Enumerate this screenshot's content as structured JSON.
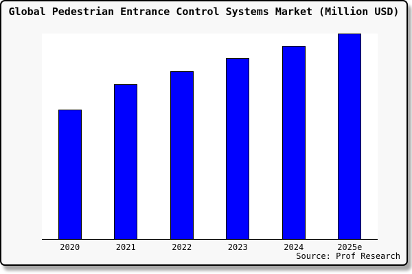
{
  "chart_data": {
    "type": "bar",
    "title": "Global Pedestrian Entrance Control Systems Market (Million USD)",
    "categories": [
      "2020",
      "2021",
      "2022",
      "2023",
      "2024",
      "2025e"
    ],
    "values": [
      62.9,
      75.3,
      81.6,
      88.0,
      94.0,
      100.0
    ],
    "values_note": "y-axis has no tick labels; values estimated as percent of tallest bar (2025e = 100)",
    "xlabel": "",
    "ylabel": "",
    "ylim_relative": [
      0,
      100
    ],
    "y_axis_labeled": false,
    "gridlines": false,
    "legend": null,
    "bar_color": "#0000ff",
    "bar_border_color": "#000000",
    "source": "Source: Prof Research"
  },
  "frame": {
    "background": "#f8f8f8",
    "plot_background": "#ffffff",
    "border_color": "#000000",
    "title_color": "#000000"
  }
}
